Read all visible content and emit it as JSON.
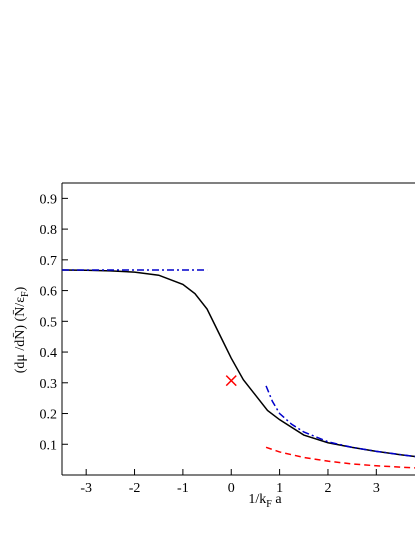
{
  "chart_data": {
    "type": "line",
    "xlabel": [
      "1/k",
      "F",
      " a"
    ],
    "ylabel": [
      "(dμ /dN̄) (N̄/ε",
      "F",
      ")"
    ],
    "xlim": [
      -3.5,
      3.8
    ],
    "ylim": [
      0,
      0.95
    ],
    "xticks": [
      -3,
      -2,
      -1,
      0,
      1,
      2,
      3
    ],
    "yticks": [
      0.1,
      0.2,
      0.3,
      0.4,
      0.5,
      0.6,
      0.7,
      0.8,
      0.9
    ],
    "series": [
      {
        "color": "#000000",
        "style": "solid",
        "x": [
          -3.5,
          -3,
          -2.5,
          -2,
          -1.5,
          -1,
          -0.75,
          -0.5,
          -0.25,
          0,
          0.25,
          0.5,
          0.75,
          1,
          1.5,
          2,
          2.5,
          3,
          3.5,
          3.8
        ],
        "values": [
          0.667,
          0.666,
          0.664,
          0.66,
          0.65,
          0.62,
          0.59,
          0.54,
          0.46,
          0.38,
          0.31,
          0.26,
          0.21,
          0.18,
          0.13,
          0.105,
          0.09,
          0.077,
          0.066,
          0.06
        ]
      },
      {
        "color": "#0000cc",
        "style": "dashdot",
        "x": [
          -3.5,
          -0.5
        ],
        "values": [
          0.667,
          0.667
        ]
      },
      {
        "color": "#0000cc",
        "style": "dashdot",
        "x": [
          0.72,
          0.85,
          1,
          1.25,
          1.5,
          2,
          2.5,
          3,
          3.8
        ],
        "values": [
          0.29,
          0.24,
          0.2,
          0.165,
          0.14,
          0.108,
          0.09,
          0.077,
          0.06
        ]
      },
      {
        "color": "#ff0000",
        "style": "dashed",
        "x": [
          0.72,
          1,
          1.5,
          2,
          2.5,
          3,
          3.8
        ],
        "values": [
          0.09,
          0.075,
          0.057,
          0.045,
          0.036,
          0.03,
          0.023
        ]
      },
      {
        "color": "#ff0000",
        "style": "marker-x",
        "x": [
          0
        ],
        "values": [
          0.307
        ]
      }
    ]
  }
}
